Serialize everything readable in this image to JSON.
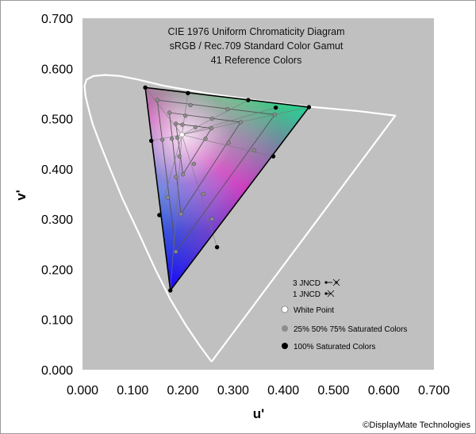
{
  "chart_data": {
    "type": "scatter",
    "title": [
      "CIE 1976 Uniform Chromaticity Diagram",
      "sRGB / Rec.709 Standard Color Gamut",
      "41 Reference Colors"
    ],
    "xlabel": "u'",
    "ylabel": "v'",
    "xlim": [
      0.0,
      0.7
    ],
    "ylim": [
      0.0,
      0.7
    ],
    "x_ticks": [
      "0.000",
      "0.100",
      "0.200",
      "0.300",
      "0.400",
      "0.500",
      "0.600",
      "0.700"
    ],
    "y_ticks": [
      "0.000",
      "0.100",
      "0.200",
      "0.300",
      "0.400",
      "0.500",
      "0.600",
      "0.700"
    ],
    "plot_background": "#c0c0c0",
    "grid": false,
    "spectral_locus": [
      [
        0.257,
        0.016
      ],
      [
        0.232,
        0.05
      ],
      [
        0.205,
        0.09
      ],
      [
        0.175,
        0.14
      ],
      [
        0.145,
        0.2
      ],
      [
        0.113,
        0.27
      ],
      [
        0.08,
        0.34
      ],
      [
        0.055,
        0.4
      ],
      [
        0.035,
        0.45
      ],
      [
        0.02,
        0.49
      ],
      [
        0.012,
        0.52
      ],
      [
        0.006,
        0.545
      ],
      [
        0.004,
        0.565
      ],
      [
        0.008,
        0.578
      ],
      [
        0.022,
        0.585
      ],
      [
        0.045,
        0.587
      ],
      [
        0.075,
        0.585
      ],
      [
        0.11,
        0.578
      ],
      [
        0.16,
        0.566
      ],
      [
        0.25,
        0.55
      ],
      [
        0.35,
        0.536
      ],
      [
        0.45,
        0.524
      ],
      [
        0.55,
        0.515
      ],
      [
        0.623,
        0.506
      ],
      [
        0.257,
        0.016
      ]
    ],
    "gamut_primaries": {
      "red": [
        0.451,
        0.523
      ],
      "green": [
        0.125,
        0.562
      ],
      "blue": [
        0.175,
        0.158
      ]
    },
    "white_point": [
      0.198,
      0.468
    ],
    "saturated_series": [
      {
        "name": "100% Saturated Colors",
        "color": "#000000",
        "points": [
          [
            0.451,
            0.523
          ],
          [
            0.33,
            0.537
          ],
          [
            0.21,
            0.551
          ],
          [
            0.125,
            0.562
          ],
          [
            0.137,
            0.456
          ],
          [
            0.153,
            0.308
          ],
          [
            0.175,
            0.158
          ],
          [
            0.268,
            0.244
          ],
          [
            0.38,
            0.425
          ],
          [
            0.385,
            0.522
          ]
        ]
      },
      {
        "name": "75% Saturated",
        "color": "#8c8c8c",
        "points": [
          [
            0.383,
            0.508
          ],
          [
            0.289,
            0.519
          ],
          [
            0.215,
            0.527
          ],
          [
            0.149,
            0.537
          ],
          [
            0.159,
            0.458
          ],
          [
            0.17,
            0.343
          ],
          [
            0.186,
            0.235
          ],
          [
            0.258,
            0.3
          ],
          [
            0.342,
            0.437
          ]
        ]
      },
      {
        "name": "50% Saturated",
        "color": "#8c8c8c",
        "points": [
          [
            0.315,
            0.493
          ],
          [
            0.258,
            0.5
          ],
          [
            0.205,
            0.506
          ],
          [
            0.173,
            0.512
          ],
          [
            0.178,
            0.46
          ],
          [
            0.186,
            0.384
          ],
          [
            0.196,
            0.31
          ],
          [
            0.241,
            0.35
          ],
          [
            0.291,
            0.452
          ]
        ]
      },
      {
        "name": "25% Saturated",
        "color": "#8c8c8c",
        "points": [
          [
            0.257,
            0.481
          ],
          [
            0.225,
            0.483
          ],
          [
            0.199,
            0.488
          ],
          [
            0.186,
            0.49
          ],
          [
            0.189,
            0.462
          ],
          [
            0.193,
            0.425
          ],
          [
            0.2,
            0.389
          ],
          [
            0.222,
            0.41
          ],
          [
            0.245,
            0.46
          ]
        ]
      }
    ],
    "legend": {
      "jnd3_label": "3 JNCD",
      "jnd1_label": "1 JNCD",
      "white_label": "White Point",
      "partial_label": "25% 50% 75% Saturated Colors",
      "full_label": "100% Saturated Colors"
    },
    "copyright": "©DisplayMate Technologies"
  }
}
